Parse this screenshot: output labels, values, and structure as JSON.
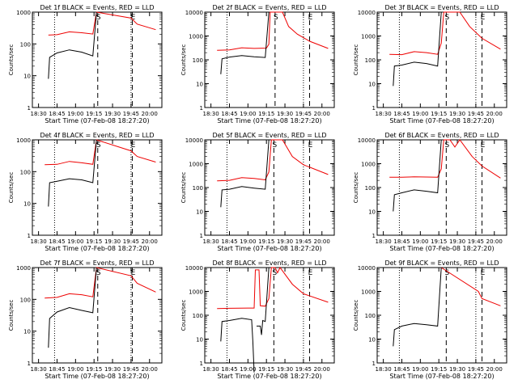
{
  "chart_data": [
    {
      "type": "line",
      "title": "Det 1f BLACK = Events, RED = LLD",
      "xlabel": "Start Time (07-Feb-08 18:27:20)",
      "ylabel": "Counts/sec",
      "yscale": "log",
      "ylim": [
        1,
        1000
      ],
      "yticks": [
        "1",
        "10",
        "100",
        "1000"
      ],
      "xticks": [
        "18:30",
        "18:45",
        "19:00",
        "19:15",
        "19:30",
        "19:45",
        "20:00"
      ],
      "markers": [
        {
          "label": "S",
          "time": "19:18"
        },
        {
          "label": "E",
          "time": "19:46"
        }
      ],
      "series": [
        {
          "color": "red",
          "points": [
            [
              "18:38",
              190
            ],
            [
              "18:45",
              195
            ],
            [
              "18:55",
              240
            ],
            [
              "19:05",
              225
            ],
            [
              "19:14",
              205
            ],
            [
              "19:17",
              1000
            ],
            [
              "19:45",
              650
            ],
            [
              "19:50",
              420
            ],
            [
              "20:05",
              280
            ]
          ]
        },
        {
          "color": "black",
          "points": [
            [
              "18:38",
              8
            ],
            [
              "18:39",
              38
            ],
            [
              "18:45",
              52
            ],
            [
              "18:55",
              65
            ],
            [
              "19:05",
              55
            ],
            [
              "19:14",
              42
            ],
            [
              "19:17",
              1000
            ]
          ]
        }
      ]
    },
    {
      "type": "line",
      "title": "Det 2f BLACK = Events, RED = LLD",
      "xlabel": "Start Time (07-Feb-08 18:27:20)",
      "ylabel": "Counts/sec",
      "yscale": "log",
      "ylim": [
        1,
        10000
      ],
      "yticks": [
        "1",
        "10",
        "100",
        "1000",
        "10000"
      ],
      "xticks": [
        "18:30",
        "18:45",
        "19:00",
        "19:15",
        "19:30",
        "19:45",
        "20:00"
      ],
      "markers": [
        {
          "label": "S",
          "time": "19:22"
        },
        {
          "label": "E",
          "time": "19:50"
        }
      ],
      "series": [
        {
          "color": "red",
          "points": [
            [
              "18:35",
              250
            ],
            [
              "18:45",
              260
            ],
            [
              "18:55",
              320
            ],
            [
              "19:05",
              300
            ],
            [
              "19:15",
              310
            ],
            [
              "19:17",
              450
            ],
            [
              "19:18",
              10000
            ],
            [
              "19:28",
              10000
            ],
            [
              "19:33",
              2500
            ],
            [
              "19:40",
              1200
            ],
            [
              "19:50",
              600
            ],
            [
              "20:05",
              300
            ]
          ]
        },
        {
          "color": "black",
          "points": [
            [
              "18:38",
              25
            ],
            [
              "18:39",
              110
            ],
            [
              "18:45",
              130
            ],
            [
              "18:55",
              150
            ],
            [
              "19:05",
              135
            ],
            [
              "19:14",
              125
            ],
            [
              "19:17",
              10000
            ]
          ]
        }
      ]
    },
    {
      "type": "line",
      "title": "Det 3f BLACK = Events, RED = LLD",
      "xlabel": "Start Time (07-Feb-08 18:27:20)",
      "ylabel": "Counts/sec",
      "yscale": "log",
      "ylim": [
        1,
        10000
      ],
      "yticks": [
        "1",
        "10",
        "100",
        "1000",
        "10000"
      ],
      "xticks": [
        "18:30",
        "18:45",
        "19:00",
        "19:15",
        "19:30",
        "19:45",
        "20:00"
      ],
      "markers": [
        {
          "label": "S",
          "time": "19:21"
        },
        {
          "label": "E",
          "time": "19:50"
        }
      ],
      "series": [
        {
          "color": "red",
          "points": [
            [
              "18:35",
              170
            ],
            [
              "18:45",
              165
            ],
            [
              "18:55",
              220
            ],
            [
              "19:05",
              200
            ],
            [
              "19:14",
              170
            ],
            [
              "19:17",
              500
            ],
            [
              "19:19",
              10000
            ],
            [
              "19:32",
              10000
            ],
            [
              "19:40",
              2500
            ],
            [
              "19:50",
              800
            ],
            [
              "20:05",
              280
            ]
          ]
        },
        {
          "color": "black",
          "points": [
            [
              "18:38",
              8
            ],
            [
              "18:39",
              55
            ],
            [
              "18:45",
              60
            ],
            [
              "18:55",
              80
            ],
            [
              "19:05",
              70
            ],
            [
              "19:14",
              55
            ],
            [
              "19:17",
              10000
            ]
          ]
        }
      ]
    },
    {
      "type": "line",
      "title": "Det 4f BLACK = Events, RED = LLD",
      "xlabel": "Start Time (07-Feb-08 18:27:20)",
      "ylabel": "Counts/sec",
      "yscale": "log",
      "ylim": [
        1,
        1000
      ],
      "yticks": [
        "1",
        "10",
        "100",
        "1000"
      ],
      "xticks": [
        "18:30",
        "18:45",
        "19:00",
        "19:15",
        "19:30",
        "19:45",
        "20:00"
      ],
      "markers": [
        {
          "label": "S",
          "time": "19:18"
        },
        {
          "label": "E",
          "time": "19:46"
        }
      ],
      "series": [
        {
          "color": "red",
          "points": [
            [
              "18:35",
              165
            ],
            [
              "18:45",
              170
            ],
            [
              "18:55",
              210
            ],
            [
              "19:05",
              190
            ],
            [
              "19:14",
              170
            ],
            [
              "19:17",
              1000
            ],
            [
              "19:45",
              450
            ],
            [
              "19:50",
              300
            ],
            [
              "20:05",
              200
            ]
          ]
        },
        {
          "color": "black",
          "points": [
            [
              "18:38",
              8
            ],
            [
              "18:39",
              45
            ],
            [
              "18:45",
              50
            ],
            [
              "18:55",
              60
            ],
            [
              "19:05",
              55
            ],
            [
              "19:14",
              45
            ],
            [
              "19:17",
              1000
            ]
          ]
        }
      ]
    },
    {
      "type": "line",
      "title": "Det 5f BLACK = Events, RED = LLD",
      "xlabel": "Start Time (07-Feb-08 18:27:20)",
      "ylabel": "Counts/sec",
      "yscale": "log",
      "ylim": [
        1,
        10000
      ],
      "yticks": [
        "1",
        "10",
        "100",
        "1000",
        "10000"
      ],
      "xticks": [
        "18:30",
        "18:45",
        "19:00",
        "19:15",
        "19:30",
        "19:45",
        "20:00"
      ],
      "markers": [
        {
          "label": "S",
          "time": "19:21"
        },
        {
          "label": "E",
          "time": "19:50"
        }
      ],
      "series": [
        {
          "color": "red",
          "points": [
            [
              "18:35",
              190
            ],
            [
              "18:45",
              200
            ],
            [
              "18:55",
              260
            ],
            [
              "19:05",
              240
            ],
            [
              "19:14",
              210
            ],
            [
              "19:17",
              450
            ],
            [
              "19:19",
              10000
            ],
            [
              "19:28",
              10000
            ],
            [
              "19:36",
              2000
            ],
            [
              "19:45",
              900
            ],
            [
              "20:05",
              350
            ]
          ]
        },
        {
          "color": "black",
          "points": [
            [
              "18:38",
              15
            ],
            [
              "18:39",
              80
            ],
            [
              "18:45",
              85
            ],
            [
              "18:55",
              110
            ],
            [
              "19:05",
              95
            ],
            [
              "19:14",
              85
            ],
            [
              "19:17",
              10000
            ]
          ]
        }
      ]
    },
    {
      "type": "line",
      "title": "Det 6f BLACK = Events, RED = LLD",
      "xlabel": "Start Time (07-Feb-08 18:27:20)",
      "ylabel": "Counts/sec",
      "yscale": "log",
      "ylim": [
        1,
        10000
      ],
      "yticks": [
        "1",
        "10",
        "100",
        "1000",
        "10000"
      ],
      "xticks": [
        "18:30",
        "18:45",
        "19:00",
        "19:15",
        "19:30",
        "19:45",
        "20:00"
      ],
      "markers": [
        {
          "label": "S",
          "time": "19:21"
        },
        {
          "label": "E",
          "time": "19:50"
        }
      ],
      "series": [
        {
          "color": "red",
          "points": [
            [
              "18:35",
              270
            ],
            [
              "18:45",
              270
            ],
            [
              "18:55",
              280
            ],
            [
              "19:05",
              275
            ],
            [
              "19:14",
              270
            ],
            [
              "19:17",
              600
            ],
            [
              "19:19",
              10000
            ],
            [
              "19:24",
              10000
            ],
            [
              "19:28",
              5000
            ],
            [
              "19:32",
              10000
            ],
            [
              "19:42",
              2000
            ],
            [
              "19:50",
              800
            ],
            [
              "20:05",
              250
            ]
          ]
        },
        {
          "color": "black",
          "points": [
            [
              "18:38",
              10
            ],
            [
              "18:39",
              50
            ],
            [
              "18:45",
              60
            ],
            [
              "18:55",
              80
            ],
            [
              "19:05",
              70
            ],
            [
              "19:14",
              60
            ],
            [
              "19:17",
              10000
            ]
          ]
        }
      ]
    },
    {
      "type": "line",
      "title": "Det 7f BLACK = Events, RED = LLD",
      "xlabel": "Start Time (07-Feb-08 18:27:20)",
      "ylabel": "Counts/sec",
      "yscale": "log",
      "ylim": [
        1,
        1000
      ],
      "yticks": [
        "1",
        "10",
        "100",
        "1000"
      ],
      "xticks": [
        "18:30",
        "18:45",
        "19:00",
        "19:15",
        "19:30",
        "19:45",
        "20:00"
      ],
      "markers": [
        {
          "label": "S",
          "time": "19:18"
        },
        {
          "label": "E",
          "time": "19:46"
        }
      ],
      "series": [
        {
          "color": "red",
          "points": [
            [
              "18:35",
              110
            ],
            [
              "18:45",
              115
            ],
            [
              "18:55",
              150
            ],
            [
              "19:05",
              140
            ],
            [
              "19:14",
              120
            ],
            [
              "19:17",
              1000
            ],
            [
              "19:45",
              550
            ],
            [
              "19:50",
              320
            ],
            [
              "20:05",
              170
            ]
          ]
        },
        {
          "color": "black",
          "points": [
            [
              "18:38",
              3
            ],
            [
              "18:39",
              25
            ],
            [
              "18:45",
              40
            ],
            [
              "18:55",
              55
            ],
            [
              "19:05",
              45
            ],
            [
              "19:14",
              38
            ],
            [
              "19:17",
              1000
            ]
          ]
        }
      ]
    },
    {
      "type": "line",
      "title": "Det 8f BLACK = Events, RED = LLD",
      "xlabel": "Start Time (07-Feb-08 18:27:20)",
      "ylabel": "Counts/sec",
      "yscale": "log",
      "ylim": [
        1,
        10000
      ],
      "yticks": [
        "1",
        "10",
        "100",
        "1000",
        "10000"
      ],
      "xticks": [
        "18:30",
        "18:45",
        "19:00",
        "19:15",
        "19:30",
        "19:45",
        "20:00"
      ],
      "markers": [
        {
          "label": "S",
          "time": "19:21"
        },
        {
          "label": "E",
          "time": "19:50"
        }
      ],
      "series": [
        {
          "color": "red",
          "points": [
            [
              "18:35",
              190
            ],
            [
              "18:45",
              195
            ],
            [
              "19:00",
              200
            ],
            [
              "19:05",
              200
            ],
            [
              "19:06",
              8000
            ],
            [
              "19:09",
              8000
            ],
            [
              "19:10",
              250
            ],
            [
              "19:14",
              240
            ],
            [
              "19:17",
              500
            ],
            [
              "19:19",
              10000
            ],
            [
              "19:22",
              10000
            ],
            [
              "19:24",
              6000
            ],
            [
              "19:26",
              10000
            ],
            [
              "19:36",
              2000
            ],
            [
              "19:45",
              800
            ],
            [
              "20:05",
              350
            ]
          ]
        },
        {
          "color": "black",
          "points": [
            [
              "18:38",
              8
            ],
            [
              "18:39",
              55
            ],
            [
              "18:45",
              60
            ],
            [
              "18:55",
              75
            ],
            [
              "19:03",
              65
            ],
            [
              "19:04",
              8
            ],
            [
              "19:05",
              0
            ]
          ]
        },
        {
          "color": "black",
          "points": [
            [
              "19:07",
              35
            ],
            [
              "19:10",
              35
            ],
            [
              "19:11",
              15
            ],
            [
              "19:12",
              60
            ],
            [
              "19:14",
              55
            ],
            [
              "19:17",
              10000
            ]
          ]
        }
      ]
    },
    {
      "type": "line",
      "title": "Det 9f BLACK = Events, RED = LLD",
      "xlabel": "Start Time (07-Feb-08 18:27:20)",
      "ylabel": "Counts/sec",
      "yscale": "log",
      "ylim": [
        1,
        10000
      ],
      "yticks": [
        "1",
        "10",
        "100",
        "1000",
        "10000"
      ],
      "xticks": [
        "18:30",
        "18:45",
        "19:00",
        "19:15",
        "19:30",
        "19:45",
        "20:00"
      ],
      "markers": [
        {
          "label": "S",
          "time": "19:21"
        },
        {
          "label": "E",
          "time": "19:50"
        }
      ],
      "series": [
        {
          "color": "red",
          "points": [
            [
              "19:17",
              10000
            ],
            [
              "19:47",
              1000
            ],
            [
              "19:50",
              500
            ],
            [
              "20:05",
              250
            ]
          ]
        },
        {
          "color": "black",
          "points": [
            [
              "18:38",
              5
            ],
            [
              "18:39",
              25
            ],
            [
              "18:45",
              35
            ],
            [
              "18:55",
              45
            ],
            [
              "19:05",
              40
            ],
            [
              "19:14",
              35
            ],
            [
              "19:17",
              10000
            ]
          ]
        }
      ]
    }
  ]
}
